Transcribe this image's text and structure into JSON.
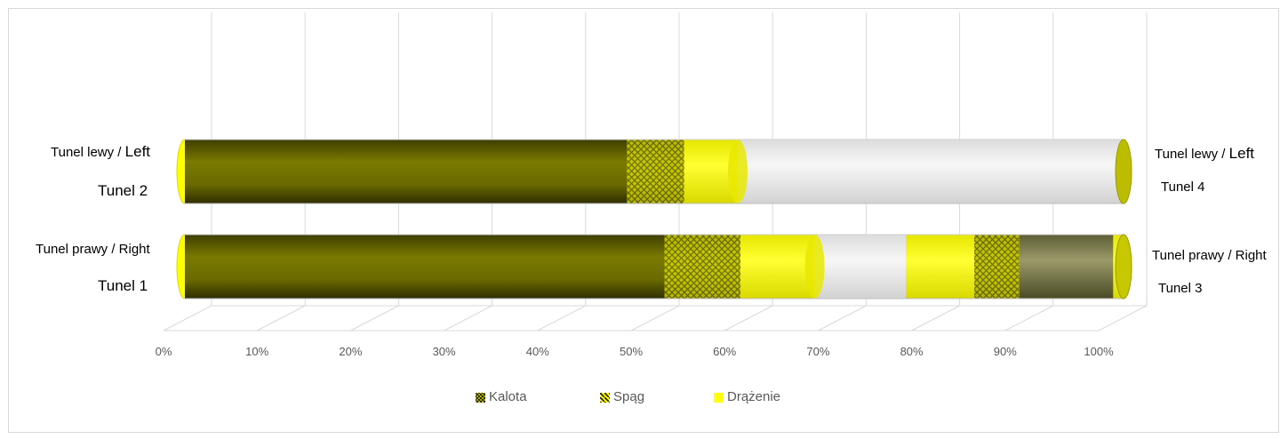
{
  "chart_data": {
    "type": "bar",
    "orientation": "horizontal-stacked-3d",
    "x_axis": {
      "ticks": [
        "0%",
        "10%",
        "20%",
        "30%",
        "40%",
        "50%",
        "60%",
        "70%",
        "80%",
        "90%",
        "100%"
      ],
      "range": [
        0,
        100
      ],
      "grid": true
    },
    "left_labels": [
      {
        "line1_a": "Tunel lewy / ",
        "line1_b": "Left",
        "line2": "Tunel 2"
      },
      {
        "line1_a": "Tunel prawy / Right",
        "line1_b": "",
        "line2": "Tunel 1"
      }
    ],
    "right_labels": [
      {
        "line1_a": "Tunel lewy / ",
        "line1_b": "Left",
        "line2": "Tunel 4"
      },
      {
        "line1_a": "Tunel prawy / Right",
        "line1_b": "",
        "line2": "Tunel 3"
      }
    ],
    "bars": [
      {
        "row": "Tunel lewy / Left",
        "segments": [
          {
            "series": "Kalota",
            "from": 0,
            "to": 47.1
          },
          {
            "series": "Spąg",
            "from": 47.1,
            "to": 53.2
          },
          {
            "series": "Drążenie",
            "from": 53.2,
            "to": 58.9
          },
          {
            "series": "empty",
            "from": 58.9,
            "to": 100
          }
        ]
      },
      {
        "row": "Tunel prawy / Right",
        "segments": [
          {
            "series": "Kalota",
            "from": 0,
            "to": 51.1
          },
          {
            "series": "Spąg",
            "from": 51.1,
            "to": 59.2
          },
          {
            "series": "Drążenie",
            "from": 59.2,
            "to": 67.1
          },
          {
            "series": "empty",
            "from": 67.1,
            "to": 76.8
          },
          {
            "series": "Drążenie",
            "from": 76.8,
            "to": 84.1
          },
          {
            "series": "Spąg",
            "from": 84.1,
            "to": 88.9
          },
          {
            "series": "Kalota-light",
            "from": 88.9,
            "to": 98.9
          },
          {
            "series": "Drążenie",
            "from": 98.9,
            "to": 100
          }
        ]
      }
    ],
    "legend": [
      {
        "label": "Kalota",
        "color": "#4d4d00"
      },
      {
        "label": "Spąg",
        "color": "#d8d800"
      },
      {
        "label": "Drążenie",
        "color": "#ffff00"
      }
    ],
    "legend_position": "bottom",
    "colors": {
      "kalota": "#6a6a00",
      "kalota_light": "#8a8a5a",
      "spag": "#c9c900",
      "drazenie": "#ffff00",
      "empty": "#eeeeee",
      "grid": "#d9d9d9",
      "tick_text": "#595959"
    }
  }
}
